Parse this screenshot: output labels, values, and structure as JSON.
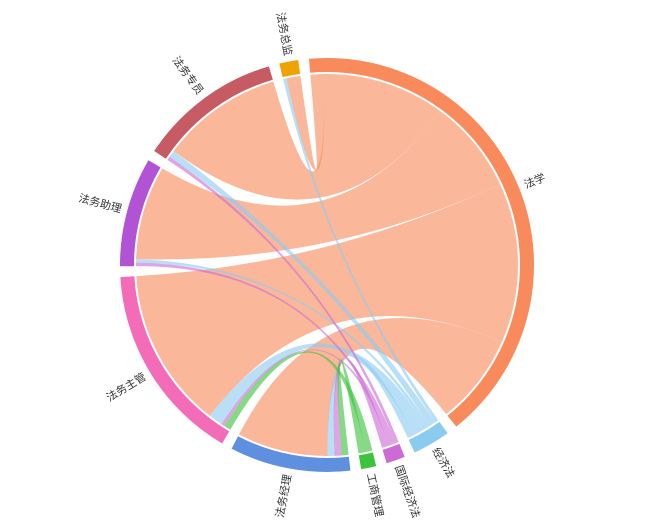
{
  "chart_data": {
    "type": "chord",
    "nodes": [
      {
        "name": "法学",
        "color": "#f98a5c"
      },
      {
        "name": "经济法",
        "color": "#8ccbf0"
      },
      {
        "name": "国际经济法",
        "color": "#cc6bd6"
      },
      {
        "name": "工商管理",
        "color": "#3cc43c"
      },
      {
        "name": "法务经理",
        "color": "#5f90e0"
      },
      {
        "name": "法务主管",
        "color": "#f46cb8"
      },
      {
        "name": "法务助理",
        "color": "#b153d4"
      },
      {
        "name": "法务专员",
        "color": "#c75b63"
      },
      {
        "name": "法务总监",
        "color": "#f0a300"
      }
    ],
    "links": [
      {
        "source": 0,
        "target": 4,
        "value": 26
      },
      {
        "source": 0,
        "target": 5,
        "value": 46
      },
      {
        "source": 0,
        "target": 6,
        "value": 27
      },
      {
        "source": 0,
        "target": 7,
        "value": 35
      },
      {
        "source": 0,
        "target": 8,
        "value": 4
      },
      {
        "source": 1,
        "target": 4,
        "value": 2
      },
      {
        "source": 1,
        "target": 5,
        "value": 4
      },
      {
        "source": 1,
        "target": 6,
        "value": 1
      },
      {
        "source": 1,
        "target": 7,
        "value": 2
      },
      {
        "source": 1,
        "target": 8,
        "value": 1
      },
      {
        "source": 2,
        "target": 4,
        "value": 2
      },
      {
        "source": 2,
        "target": 5,
        "value": 1
      },
      {
        "source": 2,
        "target": 6,
        "value": 1
      },
      {
        "source": 2,
        "target": 7,
        "value": 1
      },
      {
        "source": 3,
        "target": 4,
        "value": 2
      },
      {
        "source": 3,
        "target": 5,
        "value": 2
      }
    ]
  }
}
